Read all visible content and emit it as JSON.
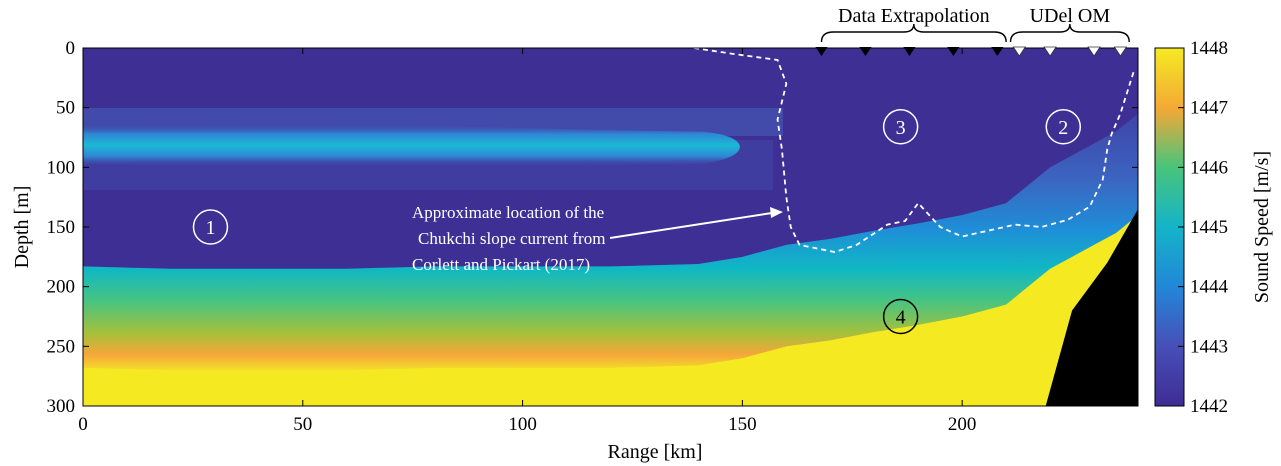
{
  "chart_data": {
    "type": "heatmap",
    "title": "",
    "xlabel": "Range [km]",
    "ylabel": "Depth [m]",
    "xlim": [
      0,
      240
    ],
    "ylim": [
      300,
      0
    ],
    "y_axis_inverted": true,
    "x_ticks": [
      0,
      50,
      100,
      150,
      200
    ],
    "y_ticks": [
      0,
      50,
      100,
      150,
      200,
      250,
      300
    ],
    "grid": false,
    "colorbar": {
      "label": "Sound Speed [m/s]",
      "ticks": [
        1442,
        1443,
        1444,
        1445,
        1446,
        1447,
        1448
      ],
      "range": [
        1442,
        1448
      ],
      "colormap": "parula",
      "placement": "right"
    },
    "background_value": 1442.2,
    "bottom_layer": {
      "description": "high sound speed bottom layer",
      "value": 1448,
      "top_depth_m": [
        [
          0,
          268
        ],
        [
          20,
          270
        ],
        [
          40,
          270
        ],
        [
          60,
          270
        ],
        [
          80,
          268
        ],
        [
          100,
          268
        ],
        [
          120,
          268
        ],
        [
          140,
          266
        ],
        [
          150,
          260
        ],
        [
          160,
          250
        ],
        [
          170,
          245
        ],
        [
          180,
          238
        ],
        [
          190,
          232
        ],
        [
          200,
          225
        ],
        [
          210,
          215
        ],
        [
          215,
          200
        ],
        [
          220,
          185
        ],
        [
          225,
          175
        ],
        [
          230,
          165
        ],
        [
          235,
          155
        ],
        [
          240,
          140
        ]
      ]
    },
    "cold_layer": {
      "description": "cyan band centred near 80-85 m",
      "value": 1444,
      "x_range": [
        0,
        150
      ],
      "depth_center_m": 83
    },
    "seafloor": {
      "description": "black bathymetry",
      "color": "#000000",
      "boundary": [
        [
          219,
          300
        ],
        [
          222,
          260
        ],
        [
          225,
          220
        ],
        [
          233,
          180
        ],
        [
          240,
          135
        ]
      ]
    },
    "slope_current_outline": [
      [
        139,
        0
      ],
      [
        148,
        5
      ],
      [
        158,
        10
      ],
      [
        160,
        30
      ],
      [
        158,
        60
      ],
      [
        159,
        85
      ],
      [
        160,
        125
      ],
      [
        161,
        150
      ],
      [
        163,
        165
      ],
      [
        171,
        171
      ],
      [
        176,
        165
      ],
      [
        183,
        148
      ],
      [
        187,
        145
      ],
      [
        190,
        130
      ],
      [
        195,
        150
      ],
      [
        200,
        158
      ],
      [
        206,
        153
      ],
      [
        212,
        148
      ],
      [
        218,
        150
      ],
      [
        224,
        144
      ],
      [
        229,
        133
      ],
      [
        232,
        110
      ],
      [
        233,
        85
      ],
      [
        234,
        72
      ],
      [
        236,
        55
      ],
      [
        239,
        20
      ]
    ],
    "markers": {
      "data_extrapolation": [
        168,
        178,
        188,
        198,
        208
      ],
      "udel_om": [
        213,
        220,
        230,
        236
      ],
      "depth_m": 0
    },
    "brackets": [
      {
        "label": "Data Extrapolation",
        "x_range": [
          168,
          210
        ]
      },
      {
        "label": "UDel OM",
        "x_range": [
          211,
          238
        ]
      }
    ],
    "regions": [
      {
        "label": "1",
        "x": 29,
        "y": 150
      },
      {
        "label": "2",
        "x": 223,
        "y": 66
      },
      {
        "label": "3",
        "x": 186,
        "y": 66
      },
      {
        "label": "4",
        "x": 186,
        "y": 225
      }
    ],
    "annotation": {
      "lines": [
        "Approximate location of the",
        "Chukchi slope current from",
        "Corlett and Pickart (2017)"
      ],
      "arrow_target": [
        158,
        140
      ]
    }
  }
}
